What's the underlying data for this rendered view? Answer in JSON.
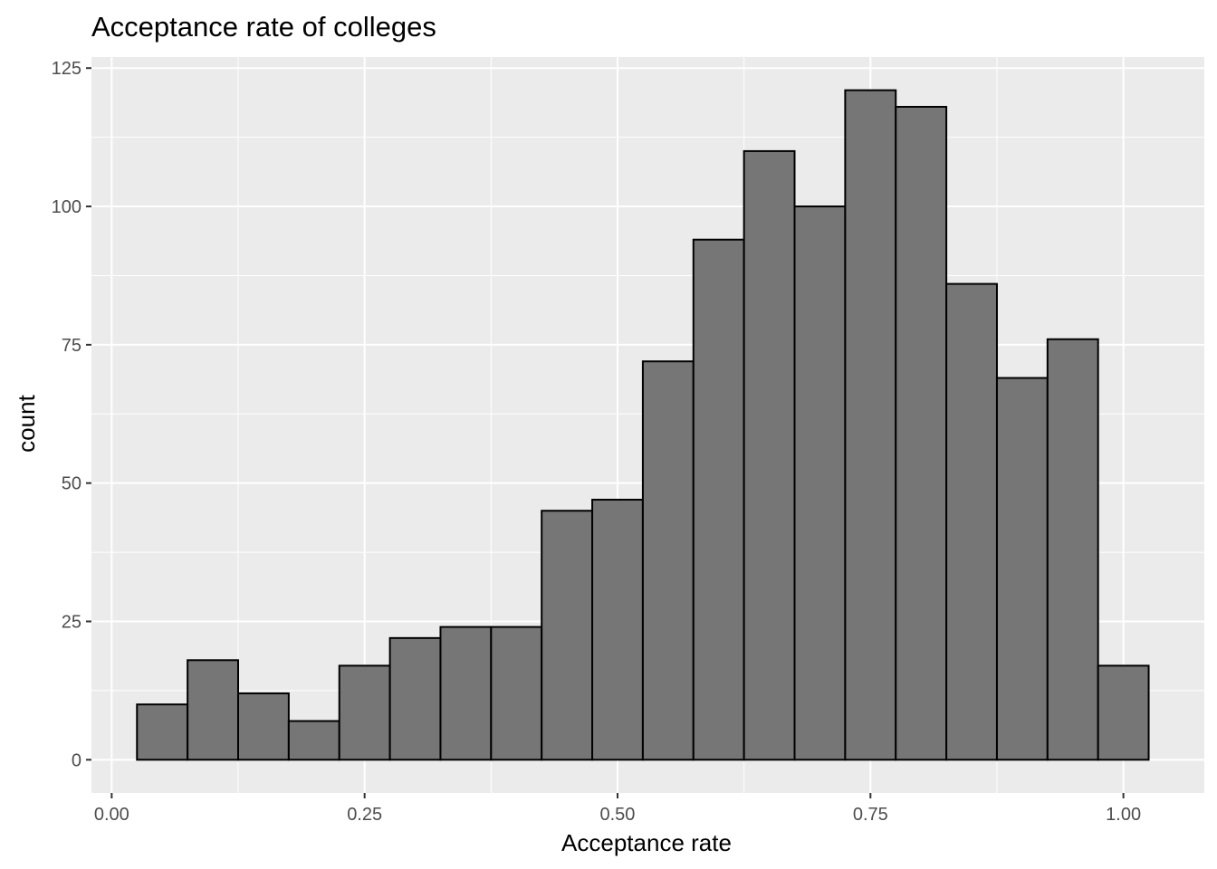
{
  "chart_data": {
    "type": "bar",
    "subtype": "histogram",
    "title": "Acceptance rate of colleges",
    "xlabel": "Acceptance rate",
    "ylabel": "count",
    "xlim": [
      -0.02,
      1.08
    ],
    "ylim": [
      -6,
      127
    ],
    "xticks": [
      0.0,
      0.25,
      0.5,
      0.75,
      1.0
    ],
    "xtick_labels": [
      "0.00",
      "0.25",
      "0.50",
      "0.75",
      "1.00"
    ],
    "yticks": [
      0,
      25,
      50,
      75,
      100,
      125
    ],
    "ytick_labels": [
      "0",
      "25",
      "50",
      "75",
      "100",
      "125"
    ],
    "bins": [
      {
        "x0": 0.025,
        "x1": 0.075,
        "count": 10
      },
      {
        "x0": 0.075,
        "x1": 0.125,
        "count": 18
      },
      {
        "x0": 0.125,
        "x1": 0.175,
        "count": 12
      },
      {
        "x0": 0.175,
        "x1": 0.225,
        "count": 7
      },
      {
        "x0": 0.225,
        "x1": 0.275,
        "count": 17
      },
      {
        "x0": 0.275,
        "x1": 0.325,
        "count": 22
      },
      {
        "x0": 0.325,
        "x1": 0.375,
        "count": 24
      },
      {
        "x0": 0.375,
        "x1": 0.425,
        "count": 24
      },
      {
        "x0": 0.425,
        "x1": 0.475,
        "count": 45
      },
      {
        "x0": 0.475,
        "x1": 0.525,
        "count": 47
      },
      {
        "x0": 0.525,
        "x1": 0.575,
        "count": 72
      },
      {
        "x0": 0.575,
        "x1": 0.625,
        "count": 94
      },
      {
        "x0": 0.625,
        "x1": 0.675,
        "count": 110
      },
      {
        "x0": 0.675,
        "x1": 0.725,
        "count": 100
      },
      {
        "x0": 0.725,
        "x1": 0.775,
        "count": 121
      },
      {
        "x0": 0.775,
        "x1": 0.825,
        "count": 118
      },
      {
        "x0": 0.825,
        "x1": 0.875,
        "count": 86
      },
      {
        "x0": 0.875,
        "x1": 0.925,
        "count": 69
      },
      {
        "x0": 0.925,
        "x1": 0.975,
        "count": 76
      },
      {
        "x0": 0.975,
        "x1": 1.025,
        "count": 17
      }
    ],
    "grid": true,
    "colors": {
      "panel_background": "#EBEBEB",
      "grid": "#FFFFFF",
      "bar_fill": "#767676",
      "bar_outline": "#000000",
      "tick_text": "#4D4D4D"
    }
  }
}
